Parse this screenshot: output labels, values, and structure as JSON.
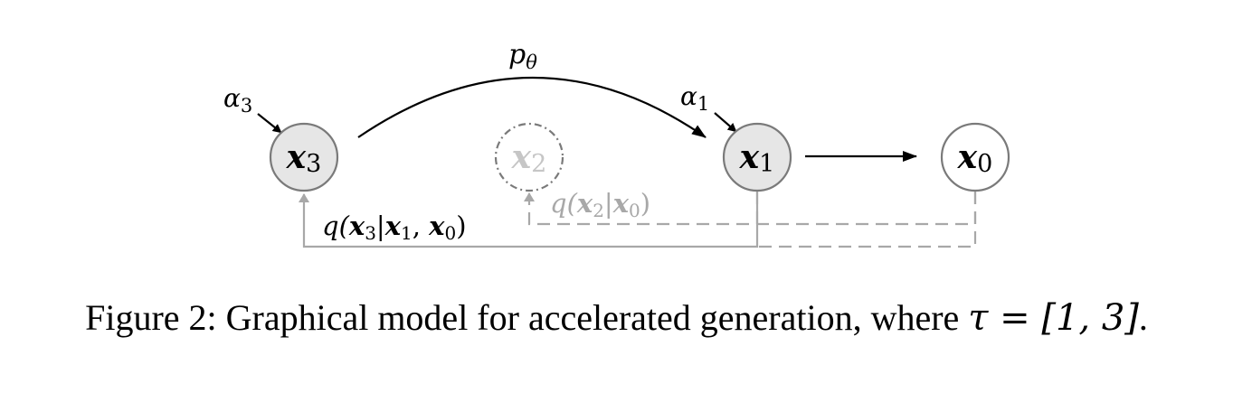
{
  "nodes": {
    "x3": {
      "base": "x",
      "sub": "3"
    },
    "x2": {
      "base": "x",
      "sub": "2"
    },
    "x1": {
      "base": "x",
      "sub": "1"
    },
    "x0": {
      "base": "x",
      "sub": "0"
    }
  },
  "labels": {
    "p_theta": {
      "base": "p",
      "sub": "θ"
    },
    "alpha3": {
      "base": "α",
      "sub": "3"
    },
    "alpha1": {
      "base": "α",
      "sub": "1"
    },
    "q3": {
      "open": "q(",
      "x3": "x",
      "s3": "3",
      "bar": "|",
      "x1": "x",
      "s1": "1",
      "comma": ", ",
      "x0": "x",
      "s0": "0",
      "close": ")"
    },
    "q2": {
      "open": "q(",
      "x2": "x",
      "s2": "2",
      "bar": "|",
      "x0": "x",
      "s0": "0",
      "close": ")"
    }
  },
  "caption": {
    "text": "Figure 2: Graphical model for accelerated generation, where ",
    "math": "τ = [1, 3]",
    "end": "."
  },
  "colors": {
    "node_fill_active": "#e6e6e6",
    "node_stroke": "#7a7a7a",
    "ghost": "#b8b8b8",
    "dashed": "#a8a8a8",
    "black": "#000000"
  }
}
